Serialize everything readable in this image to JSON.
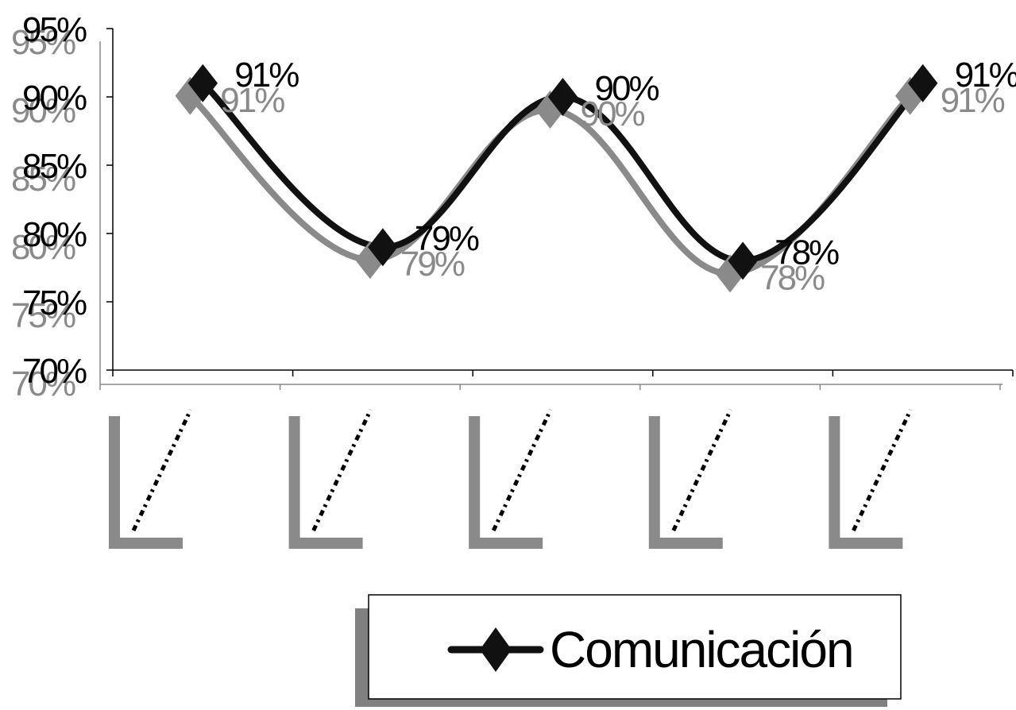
{
  "chart_data": {
    "type": "line",
    "categories": [
      "",
      "",
      "",
      "",
      ""
    ],
    "series": [
      {
        "name": "Comunicación",
        "values": [
          91,
          79,
          90,
          78,
          91
        ]
      }
    ],
    "data_labels": [
      "91%",
      "79%",
      "90%",
      "78%",
      "91%"
    ],
    "y_ticks": [
      "70%",
      "75%",
      "80%",
      "85%",
      "90%",
      "95%"
    ],
    "y_tick_values": [
      70,
      75,
      80,
      85,
      90,
      95
    ],
    "ylim": [
      70,
      95
    ],
    "grid": false,
    "legend_position": "bottom",
    "title": "",
    "xlabel": "",
    "ylabel": "",
    "colors": {
      "line": "#111111",
      "shadow": "#8a8a8a",
      "axis": "#000000"
    }
  },
  "legend": {
    "label": "Comunicación"
  }
}
